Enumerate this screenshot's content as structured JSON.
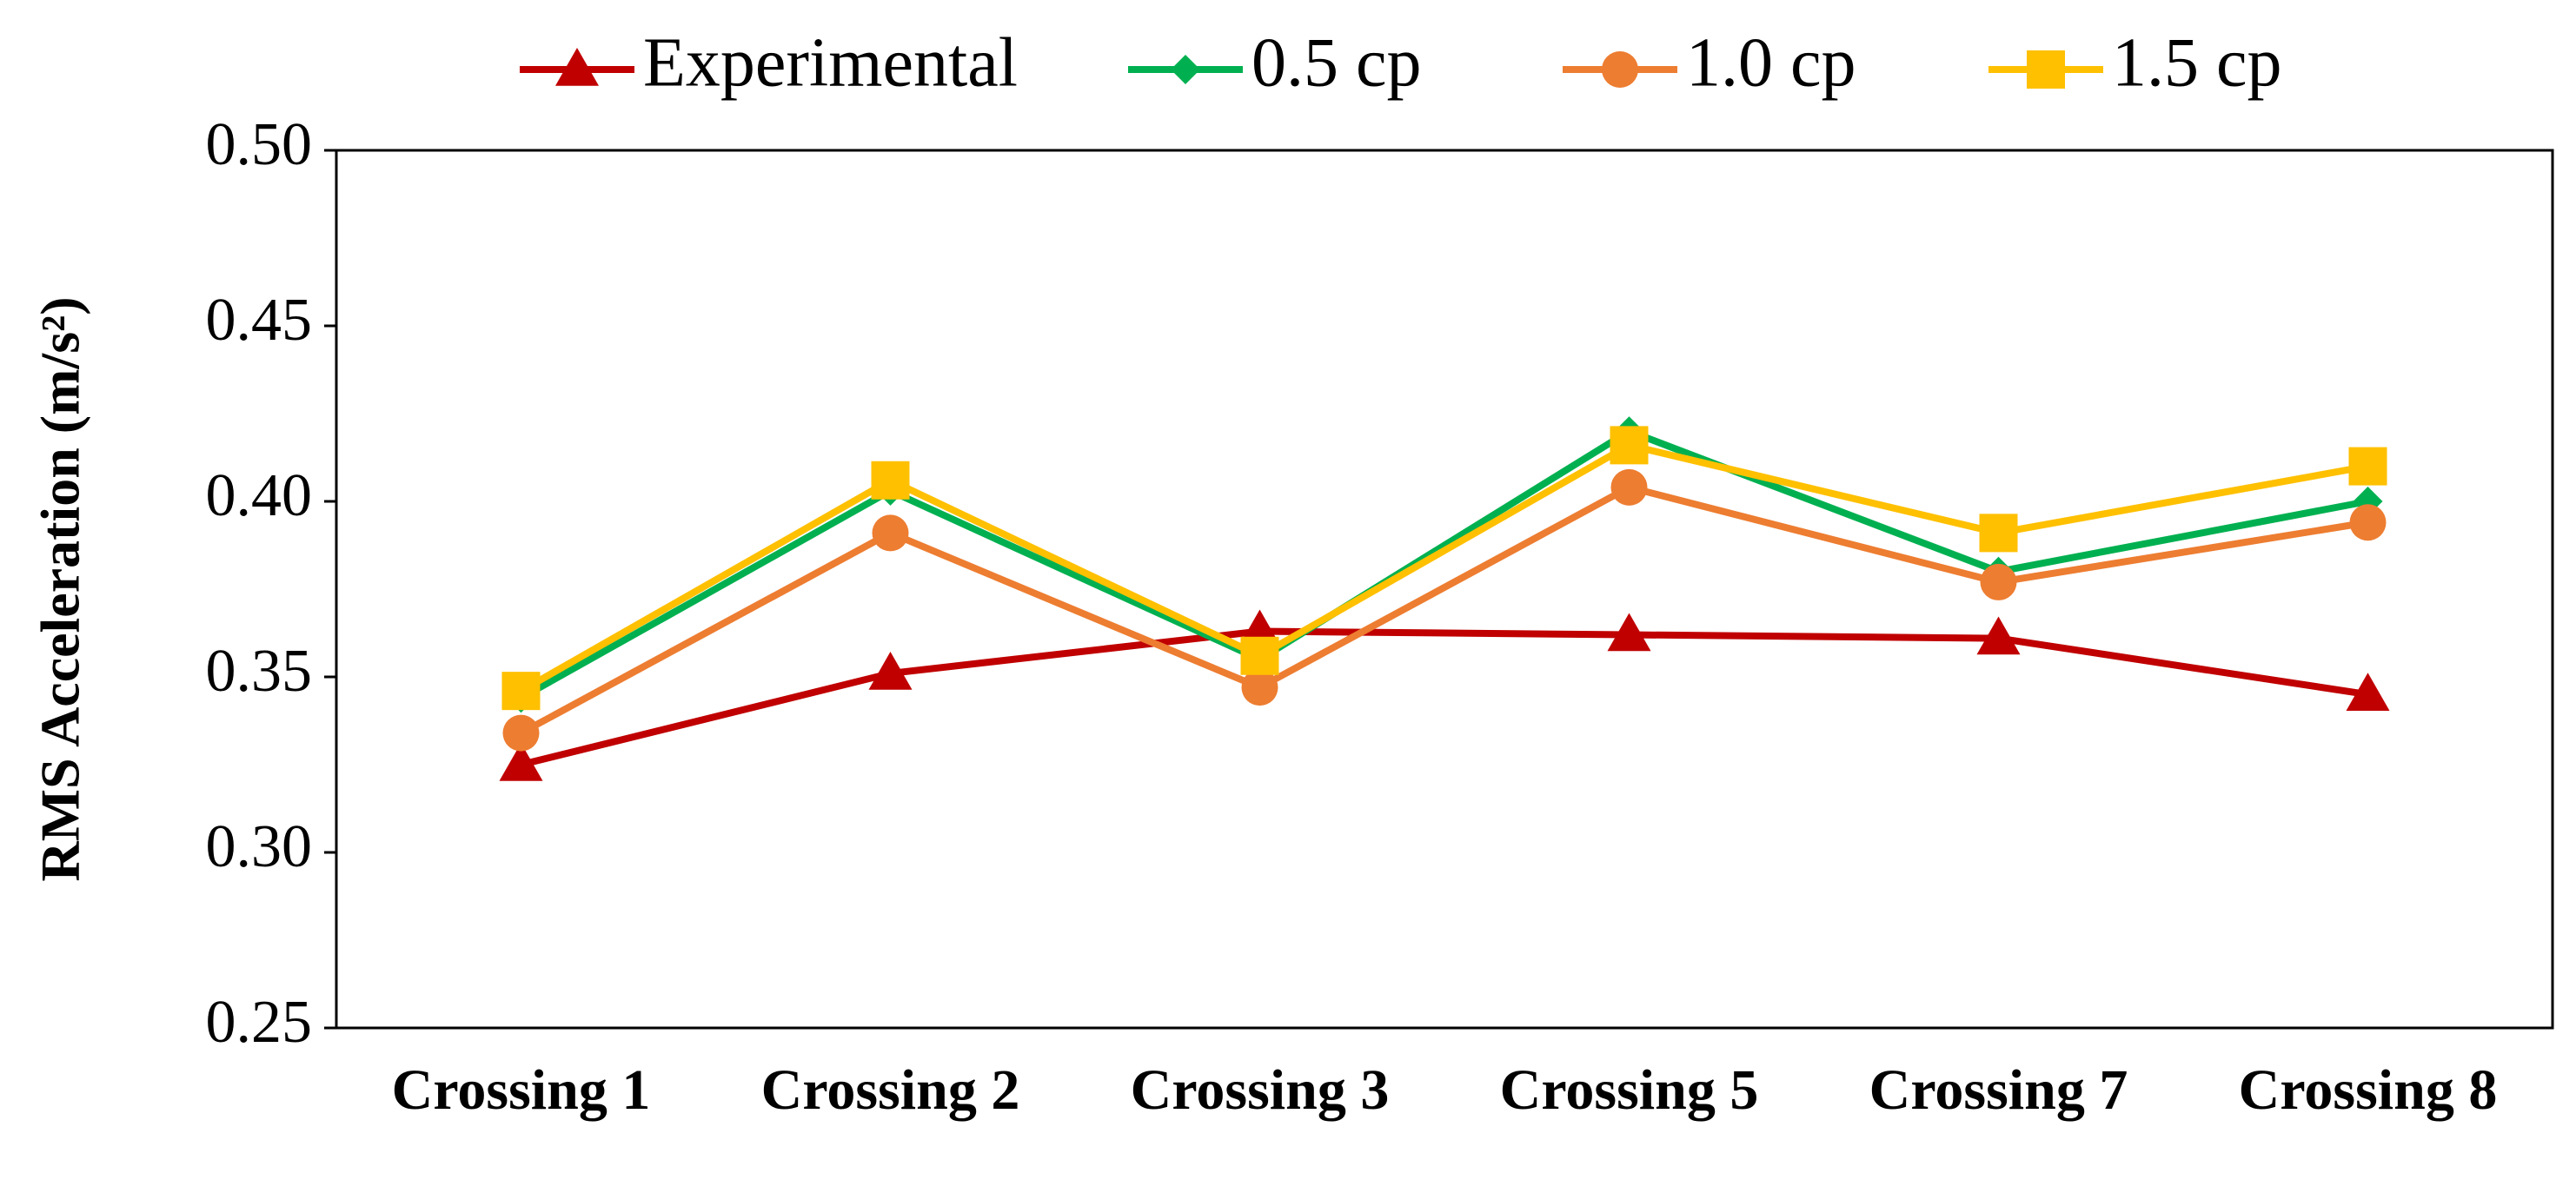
{
  "chart_data": {
    "type": "line",
    "title": "",
    "xlabel": "",
    "ylabel": "RMS Acceleration (m/s²)",
    "ylim": [
      0.25,
      0.5
    ],
    "yticks": [
      0.25,
      0.3,
      0.35,
      0.4,
      0.45,
      0.5
    ],
    "ytick_labels": [
      "0.25",
      "0.30",
      "0.35",
      "0.40",
      "0.45",
      "0.50"
    ],
    "grid": false,
    "legend_position": "top",
    "categories": [
      "Crossing 1",
      "Crossing 2",
      "Crossing 3",
      "Crossing 5",
      "Crossing 7",
      "Crossing 8"
    ],
    "series": [
      {
        "name": "Experimental",
        "marker": "triangle",
        "color": "#C00000",
        "values": [
          0.325,
          0.351,
          0.363,
          0.362,
          0.361,
          0.345
        ]
      },
      {
        "name": "0.5 cp",
        "marker": "diamond",
        "color": "#00B050",
        "values": [
          0.344,
          0.403,
          0.355,
          0.42,
          0.38,
          0.4
        ]
      },
      {
        "name": "1.0 cp",
        "marker": "circle",
        "color": "#ED7D31",
        "values": [
          0.334,
          0.391,
          0.347,
          0.404,
          0.377,
          0.394
        ]
      },
      {
        "name": "1.5 cp",
        "marker": "square",
        "color": "#FFC000",
        "values": [
          0.346,
          0.406,
          0.356,
          0.416,
          0.391,
          0.41
        ]
      }
    ]
  }
}
